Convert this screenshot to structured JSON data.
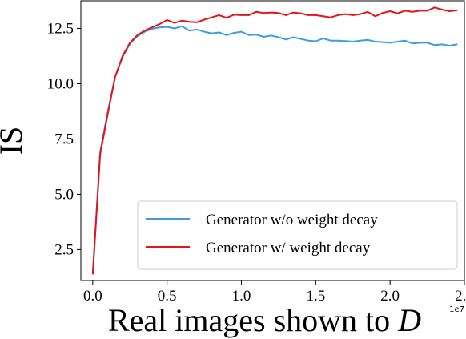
{
  "chart_data": {
    "type": "line",
    "title": "",
    "xlabel": "Real images shown to ",
    "xlabel_var": "D",
    "ylabel": "IS",
    "x_offset_label": "1e7",
    "xlim": [
      -0.08,
      2.5
    ],
    "ylim": [
      1.1,
      13.75
    ],
    "grid": false,
    "legend_position": "lower-right",
    "xticks": [
      0.0,
      0.5,
      1.0,
      1.5,
      2.0,
      2.5
    ],
    "xtick_labels": [
      "0.0",
      "0.5",
      "1.0",
      "1.5",
      "2.0",
      "2.5"
    ],
    "yticks": [
      2.5,
      5.0,
      7.5,
      10.0,
      12.5
    ],
    "ytick_labels": [
      "2.5",
      "5.0",
      "7.5",
      "10.0",
      "12.5"
    ],
    "x": [
      0.0,
      0.05,
      0.1,
      0.15,
      0.2,
      0.25,
      0.3,
      0.35,
      0.4,
      0.45,
      0.5,
      0.55,
      0.6,
      0.65,
      0.7,
      0.75,
      0.8,
      0.85,
      0.9,
      0.95,
      1.0,
      1.05,
      1.1,
      1.15,
      1.2,
      1.25,
      1.3,
      1.35,
      1.4,
      1.45,
      1.5,
      1.55,
      1.6,
      1.65,
      1.7,
      1.75,
      1.8,
      1.85,
      1.9,
      1.95,
      2.0,
      2.05,
      2.1,
      2.15,
      2.2,
      2.25,
      2.3,
      2.35,
      2.4,
      2.45
    ],
    "series": [
      {
        "name": "Generator w/o weight decay",
        "color": "#3a9ee5",
        "values": [
          1.4,
          6.9,
          8.7,
          10.3,
          11.2,
          11.8,
          12.15,
          12.35,
          12.48,
          12.55,
          12.57,
          12.5,
          12.6,
          12.4,
          12.45,
          12.35,
          12.28,
          12.32,
          12.2,
          12.3,
          12.35,
          12.2,
          12.22,
          12.12,
          12.18,
          12.1,
          12.0,
          12.1,
          12.02,
          11.95,
          11.92,
          12.05,
          11.95,
          11.95,
          11.93,
          11.9,
          11.95,
          11.98,
          11.9,
          11.88,
          11.85,
          11.9,
          11.95,
          11.82,
          11.85,
          11.85,
          11.75,
          11.78,
          11.72,
          11.78
        ]
      },
      {
        "name": "Generator w/ weight decay",
        "color": "#e3141c",
        "values": [
          1.4,
          6.8,
          8.6,
          10.3,
          11.25,
          11.85,
          12.2,
          12.4,
          12.55,
          12.7,
          12.88,
          12.75,
          12.85,
          12.8,
          12.78,
          12.9,
          13.0,
          13.1,
          12.98,
          13.12,
          13.1,
          13.1,
          13.25,
          13.2,
          13.22,
          13.2,
          13.1,
          13.22,
          13.18,
          13.1,
          13.1,
          13.05,
          13.0,
          13.1,
          13.15,
          13.1,
          13.15,
          13.25,
          13.05,
          13.2,
          13.28,
          13.18,
          13.3,
          13.25,
          13.3,
          13.3,
          13.45,
          13.35,
          13.28,
          13.32
        ]
      }
    ]
  }
}
